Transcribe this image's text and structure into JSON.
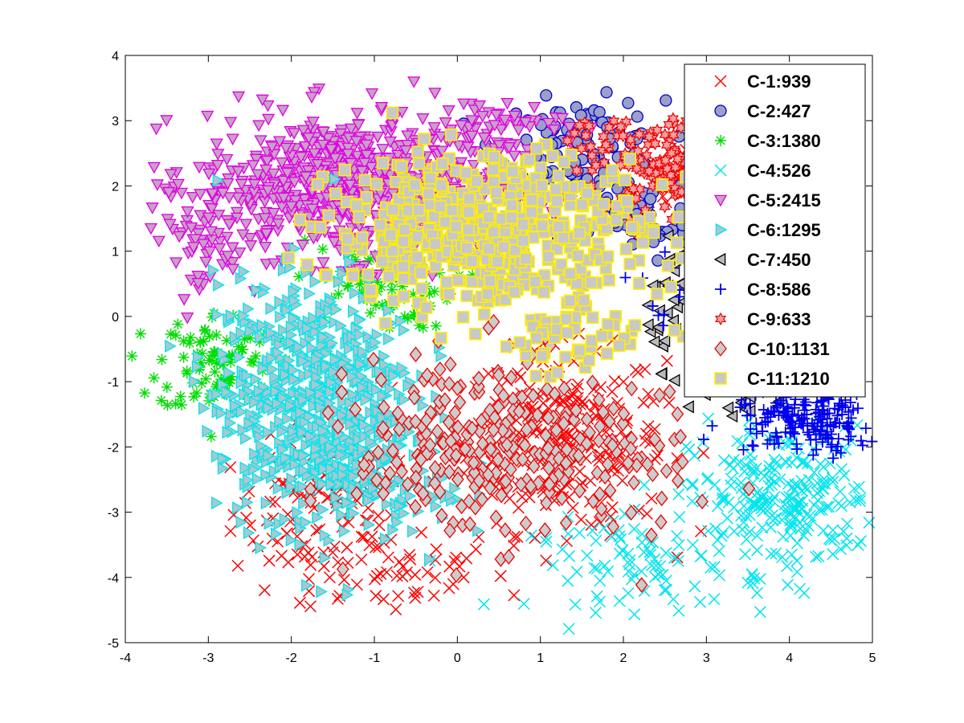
{
  "chart_data": {
    "type": "scatter",
    "title": "",
    "xlabel": "",
    "ylabel": "",
    "xlim": [
      -4,
      5
    ],
    "ylim": [
      -5,
      4
    ],
    "xticks": [
      "-4",
      "-3",
      "-2",
      "-1",
      "0",
      "1",
      "2",
      "3",
      "4",
      "5"
    ],
    "yticks": [
      "-5",
      "-4",
      "-3",
      "-2",
      "-1",
      "0",
      "1",
      "2",
      "3",
      "4"
    ],
    "grid": false,
    "legend_position": "top-right",
    "series": [
      {
        "name": "C-1:939",
        "marker": "x",
        "color": "#ff0000",
        "fill": "none",
        "regions": [
          {
            "cx": -1.6,
            "cy": -3.0,
            "sx": 0.55,
            "sy": 0.55,
            "n": 110
          },
          {
            "cx": -0.8,
            "cy": -3.9,
            "sx": 0.7,
            "sy": 0.35,
            "n": 50
          },
          {
            "cx": 1.3,
            "cy": -1.9,
            "sx": 0.6,
            "sy": 0.7,
            "n": 260
          },
          {
            "cx": 2.7,
            "cy": 2.1,
            "sx": 0.25,
            "sy": 0.35,
            "n": 40
          }
        ]
      },
      {
        "name": "C-2:427",
        "marker": "circle",
        "color": "#0000cc",
        "fill": "#9aa0c8",
        "regions": [
          {
            "cx": 1.5,
            "cy": 2.6,
            "sx": 0.5,
            "sy": 0.35,
            "n": 120
          },
          {
            "cx": 2.2,
            "cy": 1.4,
            "sx": 0.3,
            "sy": 0.3,
            "n": 50
          }
        ]
      },
      {
        "name": "C-3:1380",
        "marker": "asterisk",
        "color": "#00dd00",
        "fill": "none",
        "regions": [
          {
            "cx": -2.9,
            "cy": -0.7,
            "sx": 0.35,
            "sy": 0.4,
            "n": 90
          },
          {
            "cx": -1.0,
            "cy": 0.5,
            "sx": 0.5,
            "sy": 0.35,
            "n": 80
          }
        ]
      },
      {
        "name": "C-4:526",
        "marker": "x",
        "color": "#00e5ee",
        "fill": "none",
        "regions": [
          {
            "cx": 3.9,
            "cy": -2.8,
            "sx": 0.55,
            "sy": 0.55,
            "n": 240
          },
          {
            "cx": 2.3,
            "cy": -3.8,
            "sx": 0.7,
            "sy": 0.35,
            "n": 90
          }
        ]
      },
      {
        "name": "C-5:2415",
        "marker": "triangle-down",
        "color": "#e000e0",
        "fill": "#e000e0",
        "regions": [
          {
            "cx": -1.3,
            "cy": 2.0,
            "sx": 0.9,
            "sy": 0.55,
            "n": 750
          },
          {
            "cx": -3.1,
            "cy": 1.2,
            "sx": 0.25,
            "sy": 0.45,
            "n": 50
          },
          {
            "cx": 0.3,
            "cy": 2.9,
            "sx": 0.5,
            "sy": 0.2,
            "n": 60
          }
        ]
      },
      {
        "name": "C-6:1295",
        "marker": "triangle-right",
        "color": "#00e5ee",
        "fill": "#00e5ee",
        "regions": [
          {
            "cx": -1.7,
            "cy": -1.3,
            "sx": 0.6,
            "sy": 0.95,
            "n": 700
          },
          {
            "cx": -0.8,
            "cy": -2.8,
            "sx": 0.45,
            "sy": 0.35,
            "n": 60
          }
        ]
      },
      {
        "name": "C-7:450",
        "marker": "triangle-left",
        "color": "#000000",
        "fill": "#bbbbbb",
        "regions": [
          {
            "cx": 2.8,
            "cy": 0.3,
            "sx": 0.25,
            "sy": 0.5,
            "n": 60
          },
          {
            "cx": 3.4,
            "cy": -1.2,
            "sx": 0.3,
            "sy": 0.2,
            "n": 30
          }
        ]
      },
      {
        "name": "C-8:586",
        "marker": "plus",
        "color": "#0000ee",
        "fill": "none",
        "regions": [
          {
            "cx": 4.2,
            "cy": -1.6,
            "sx": 0.45,
            "sy": 0.25,
            "n": 180
          },
          {
            "cx": 2.6,
            "cy": 0.5,
            "sx": 0.3,
            "sy": 0.3,
            "n": 20
          }
        ]
      },
      {
        "name": "C-9:633",
        "marker": "hexagram",
        "color": "#ee0000",
        "fill": "#f4a0a0",
        "regions": [
          {
            "cx": 2.6,
            "cy": 2.3,
            "sx": 0.35,
            "sy": 0.35,
            "n": 120
          },
          {
            "cx": 1.7,
            "cy": 2.6,
            "sx": 0.35,
            "sy": 0.25,
            "n": 30
          }
        ]
      },
      {
        "name": "C-10:1131",
        "marker": "diamond",
        "color": "#ee0000",
        "fill": "#cccccc",
        "regions": [
          {
            "cx": 0.3,
            "cy": -2.0,
            "sx": 0.75,
            "sy": 0.7,
            "n": 260
          },
          {
            "cx": 1.8,
            "cy": -2.2,
            "sx": 0.5,
            "sy": 0.55,
            "n": 60
          }
        ]
      },
      {
        "name": "C-11:1210",
        "marker": "square",
        "color": "#ffee00",
        "fill": "#c8c8c8",
        "regions": [
          {
            "cx": 0.4,
            "cy": 1.3,
            "sx": 0.95,
            "sy": 0.6,
            "n": 520
          },
          {
            "cx": 1.4,
            "cy": -0.4,
            "sx": 0.6,
            "sy": 0.25,
            "n": 40
          }
        ]
      }
    ]
  }
}
